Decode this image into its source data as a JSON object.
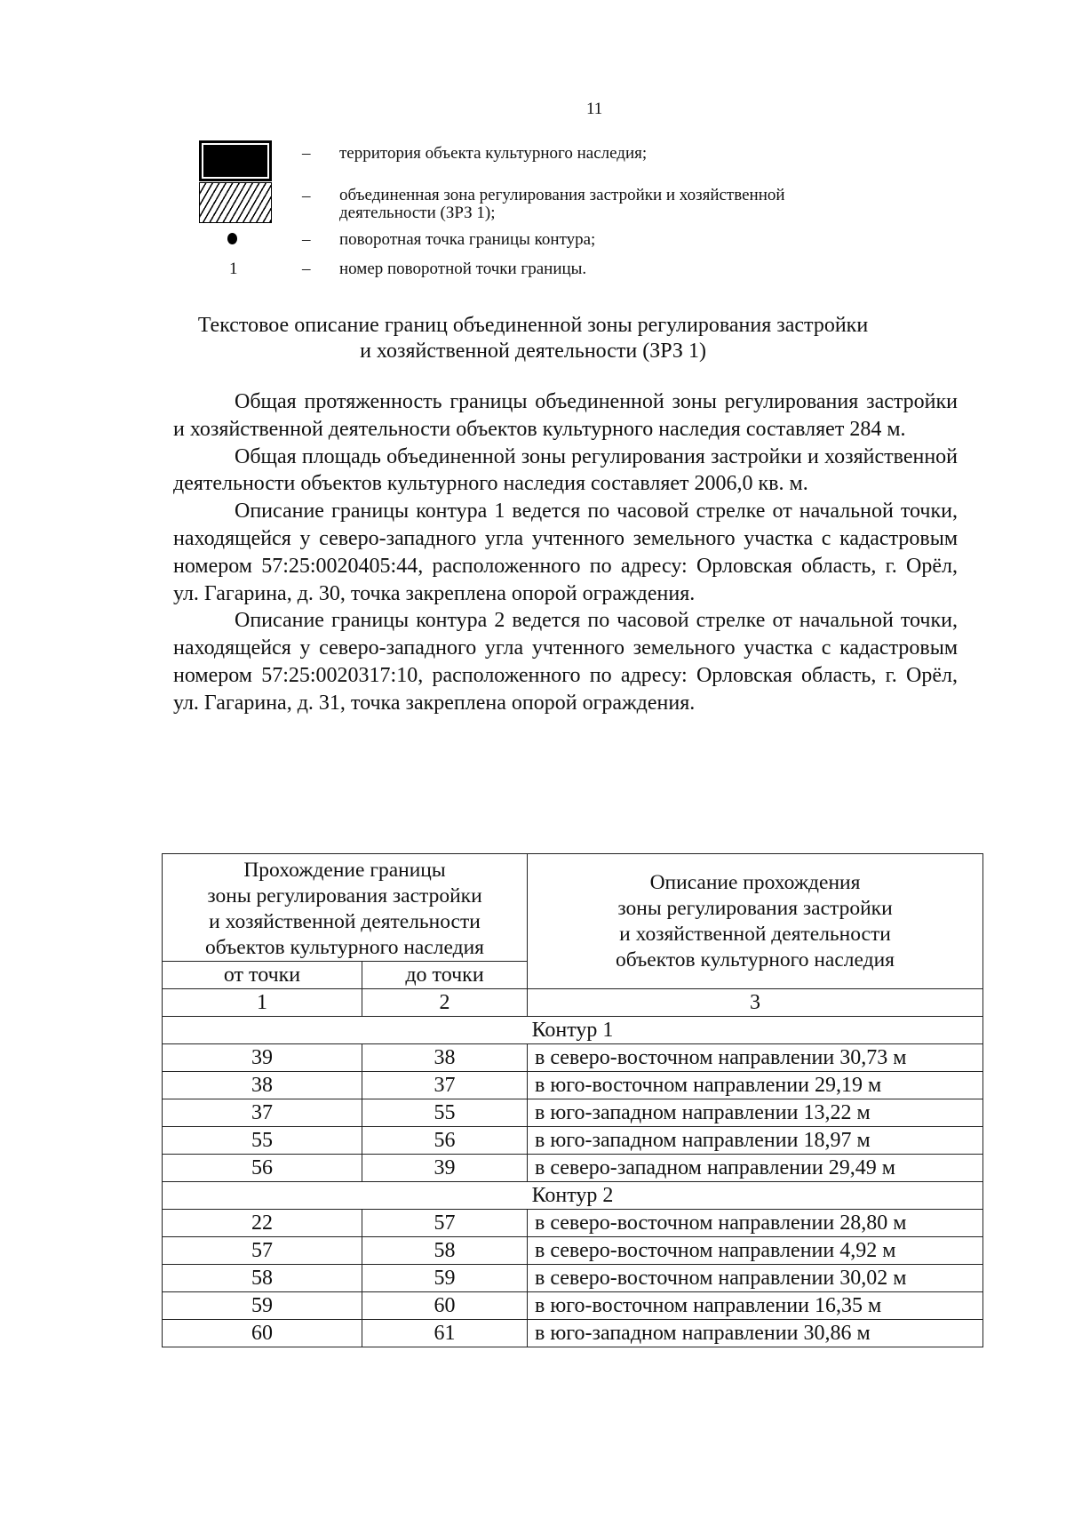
{
  "page_number": "11",
  "legend": [
    {
      "symbol": "black-box",
      "dash": "–",
      "text": "территория объекта культурного наследия;"
    },
    {
      "symbol": "hatched-box",
      "dash": "–",
      "text": "объединенная  зона регулирования застройки и хозяйственной деятельности (ЗРЗ 1);"
    },
    {
      "symbol": "dot",
      "dash": "–",
      "text": "поворотная точка границы контура;"
    },
    {
      "symbol": "1",
      "dash": "–",
      "text": "номер поворотной точки границы."
    }
  ],
  "title": {
    "line1": "Текстовое описание границ объединенной  зоны регулирования застройки",
    "line2": "и хозяйственной деятельности (ЗРЗ 1)"
  },
  "paragraphs": [
    "Общая протяженность границы объединенной зоны регулирования застройки и хозяйственной деятельности объектов культурного наследия составляет 284 м.",
    "Общая площадь объединенной зоны регулирования застройки и хозяйственной деятельности объектов культурного наследия составляет 2006,0 кв. м.",
    "Описание границы контура 1 ведется по часовой стрелке от начальной точки, находящейся у северо-западного угла учтенного земельного участка с кадастровым номером 57:25:0020405:44, расположенного по адресу: Орловская область, г. Орёл, ул. Гагарина, д. 30, точка закреплена опорой ограждения.",
    "Описание границы контура 2 ведется по часовой стрелке от начальной точки, находящейся у северо-западного угла учтенного земельного участка с кадастровым номером 57:25:0020317:10, расположенного по адресу: Орловская область, г. Орёл, ул. Гагарина, д. 31, точка закреплена опорой ограждения."
  ],
  "table": {
    "header_left": [
      "Прохождение границы",
      "зоны регулирования застройки",
      "и хозяйственной деятельности",
      "объектов культурного наследия"
    ],
    "header_right": [
      "Описание прохождения",
      "зоны регулирования застройки",
      "и хозяйственной деятельности",
      "объектов культурного наследия"
    ],
    "col_from": "от точки",
    "col_to": "до точки",
    "col_numbers": [
      "1",
      "2",
      "3"
    ],
    "sections": [
      {
        "title": "Контур 1",
        "rows": [
          [
            "39",
            "38",
            "в северо-восточном направлении 30,73 м"
          ],
          [
            "38",
            "37",
            "в юго-восточном направлении 29,19 м"
          ],
          [
            "37",
            "55",
            "в юго-западном направлении 13,22 м"
          ],
          [
            "55",
            "56",
            "в юго-западном направлении 18,97 м"
          ],
          [
            "56",
            "39",
            "в северо-западном направлении 29,49 м"
          ]
        ]
      },
      {
        "title": "Контур 2",
        "rows": [
          [
            "22",
            "57",
            "в северо-восточном направлении 28,80 м"
          ],
          [
            "57",
            "58",
            "в северо-восточном направлении 4,92 м"
          ],
          [
            "58",
            "59",
            "в северо-восточном направлении 30,02 м"
          ],
          [
            "59",
            "60",
            "в юго-восточном направлении 16,35 м"
          ],
          [
            "60",
            "61",
            "в юго-западном направлении 30,86 м"
          ]
        ]
      }
    ]
  }
}
